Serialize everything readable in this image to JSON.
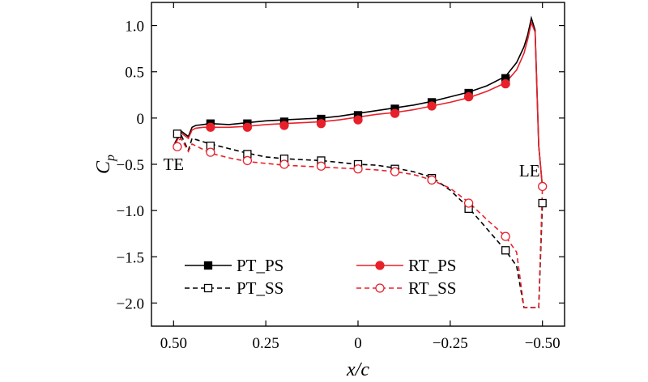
{
  "chart_data": {
    "type": "line",
    "title": "",
    "xlabel": "x/c",
    "ylabel": "Cp",
    "ylabel_main": "C",
    "ylabel_sub": "p",
    "x_reversed": true,
    "xlim": [
      0.56,
      -0.56
    ],
    "ylim": [
      -2.25,
      1.25
    ],
    "x_ticks": [
      0.5,
      0.25,
      0,
      -0.25,
      -0.5
    ],
    "x_tick_labels": [
      "0.50",
      "0.25",
      "0",
      "−0.25",
      "−0.50"
    ],
    "y_ticks": [
      1.0,
      0.5,
      0,
      -0.5,
      -1.0,
      -1.5,
      -2.0
    ],
    "y_tick_labels": [
      "1.0",
      "0.5",
      "0",
      "−0.5",
      "−1.0",
      "−1.5",
      "−2.0"
    ],
    "annotations": [
      {
        "text": "TE",
        "x": 0.5,
        "y": -0.5
      },
      {
        "text": "LE",
        "x": -0.465,
        "y": -0.57
      }
    ],
    "legend": {
      "placement": "lower-left"
    },
    "series": [
      {
        "name": "PT_PS",
        "color": "#000000",
        "line_style": "solid",
        "marker": "filled-square",
        "x": [
          0.5,
          0.48,
          0.46,
          0.45,
          0.44,
          0.42,
          0.4,
          0.35,
          0.3,
          0.25,
          0.2,
          0.15,
          0.1,
          0.05,
          0,
          -0.05,
          -0.1,
          -0.15,
          -0.2,
          -0.25,
          -0.3,
          -0.35,
          -0.4,
          -0.43,
          -0.45,
          -0.46,
          -0.47,
          -0.48,
          -0.49,
          -0.5
        ],
        "y": [
          -0.3,
          -0.14,
          -0.2,
          -0.1,
          -0.08,
          -0.07,
          -0.06,
          -0.07,
          -0.05,
          -0.03,
          -0.02,
          -0.01,
          0.0,
          0.02,
          0.05,
          0.08,
          0.11,
          0.14,
          0.18,
          0.23,
          0.28,
          0.35,
          0.45,
          0.6,
          0.77,
          0.9,
          1.08,
          0.95,
          -0.3,
          -0.75
        ],
        "marker_x": [
          0.4,
          0.3,
          0.2,
          0.1,
          0.0,
          -0.1,
          -0.2,
          -0.3,
          -0.4
        ],
        "marker_y": [
          -0.06,
          -0.06,
          -0.04,
          -0.01,
          0.03,
          0.1,
          0.17,
          0.27,
          0.43
        ]
      },
      {
        "name": "RT_PS",
        "color": "#e8202a",
        "line_style": "solid",
        "marker": "filled-circle",
        "x": [
          0.5,
          0.48,
          0.46,
          0.45,
          0.44,
          0.42,
          0.4,
          0.35,
          0.3,
          0.25,
          0.2,
          0.15,
          0.1,
          0.05,
          0,
          -0.05,
          -0.1,
          -0.15,
          -0.2,
          -0.25,
          -0.3,
          -0.35,
          -0.4,
          -0.43,
          -0.45,
          -0.46,
          -0.47,
          -0.48,
          -0.49,
          -0.5
        ],
        "y": [
          -0.32,
          -0.16,
          -0.22,
          -0.13,
          -0.11,
          -0.1,
          -0.1,
          -0.1,
          -0.09,
          -0.07,
          -0.06,
          -0.05,
          -0.04,
          -0.02,
          0.01,
          0.04,
          0.06,
          0.09,
          0.13,
          0.17,
          0.22,
          0.29,
          0.38,
          0.52,
          0.7,
          0.85,
          1.03,
          0.93,
          -0.3,
          -0.75
        ],
        "marker_x": [
          0.4,
          0.3,
          0.2,
          0.1,
          0.0,
          -0.1,
          -0.2,
          -0.3,
          -0.4
        ],
        "marker_y": [
          -0.1,
          -0.1,
          -0.08,
          -0.06,
          -0.02,
          0.05,
          0.13,
          0.23,
          0.37
        ]
      },
      {
        "name": "PT_SS",
        "color": "#000000",
        "line_style": "dashed",
        "marker": "open-square",
        "x": [
          0.5,
          0.48,
          0.46,
          0.45,
          0.4,
          0.35,
          0.3,
          0.25,
          0.2,
          0.15,
          0.1,
          0.05,
          0,
          -0.05,
          -0.1,
          -0.15,
          -0.2,
          -0.25,
          -0.3,
          -0.35,
          -0.4,
          -0.43,
          -0.45,
          -0.47,
          -0.49,
          -0.5
        ],
        "y": [
          -0.17,
          -0.18,
          -0.35,
          -0.22,
          -0.28,
          -0.33,
          -0.38,
          -0.42,
          -0.44,
          -0.45,
          -0.46,
          -0.48,
          -0.5,
          -0.51,
          -0.54,
          -0.58,
          -0.64,
          -0.78,
          -0.97,
          -1.2,
          -1.43,
          -1.6,
          -2.05,
          -2.05,
          -2.05,
          -0.92
        ],
        "marker_x": [
          0.49,
          0.4,
          0.3,
          0.2,
          0.1,
          0.0,
          -0.1,
          -0.2,
          -0.3,
          -0.4,
          -0.5
        ],
        "marker_y": [
          -0.17,
          -0.3,
          -0.39,
          -0.44,
          -0.46,
          -0.5,
          -0.55,
          -0.65,
          -0.98,
          -1.43,
          -0.92
        ]
      },
      {
        "name": "RT_SS",
        "color": "#e8202a",
        "line_style": "dashed",
        "marker": "open-circle",
        "x": [
          0.5,
          0.48,
          0.46,
          0.45,
          0.4,
          0.35,
          0.3,
          0.25,
          0.2,
          0.15,
          0.1,
          0.05,
          0,
          -0.05,
          -0.1,
          -0.15,
          -0.2,
          -0.25,
          -0.3,
          -0.35,
          -0.4,
          -0.43,
          -0.45,
          -0.47,
          -0.49,
          -0.5
        ],
        "y": [
          -0.3,
          -0.22,
          -0.36,
          -0.28,
          -0.38,
          -0.43,
          -0.47,
          -0.49,
          -0.51,
          -0.52,
          -0.53,
          -0.54,
          -0.55,
          -0.56,
          -0.58,
          -0.61,
          -0.67,
          -0.76,
          -0.91,
          -1.1,
          -1.28,
          -1.45,
          -2.05,
          -2.05,
          -2.05,
          -0.74
        ],
        "marker_x": [
          0.49,
          0.4,
          0.3,
          0.2,
          0.1,
          0.0,
          -0.1,
          -0.2,
          -0.3,
          -0.4,
          -0.5
        ],
        "marker_y": [
          -0.31,
          -0.37,
          -0.46,
          -0.5,
          -0.52,
          -0.55,
          -0.58,
          -0.67,
          -0.92,
          -1.28,
          -0.74
        ]
      }
    ]
  }
}
